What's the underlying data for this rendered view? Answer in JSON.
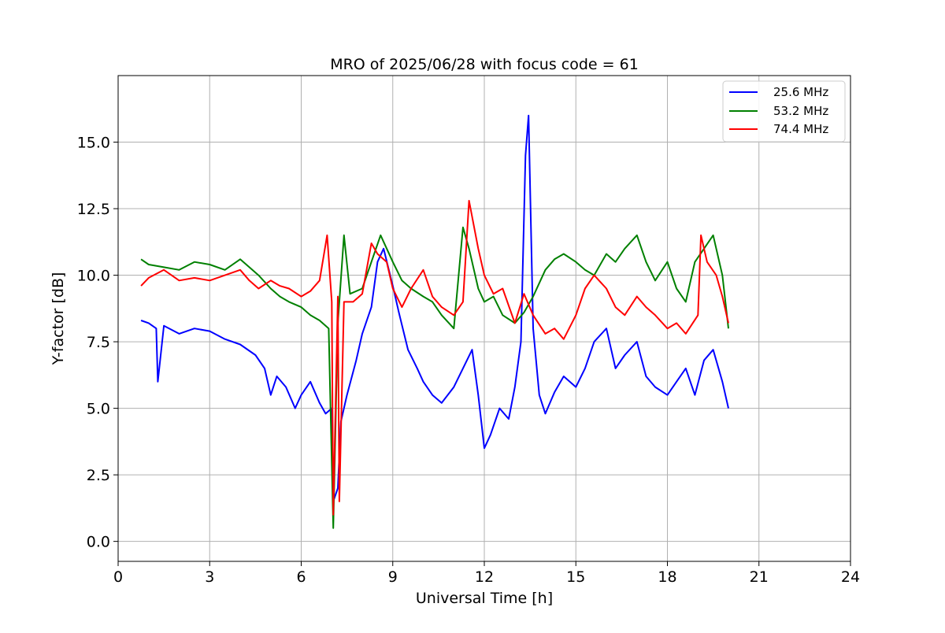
{
  "chart_data": {
    "type": "line",
    "title": "MRO of 2025/06/28 with focus code = 61",
    "xlabel": "Universal Time [h]",
    "ylabel": "Y-factor [dB]",
    "xlim": [
      0,
      24
    ],
    "ylim": [
      -0.75,
      17.5
    ],
    "xticks": [
      0,
      3,
      6,
      9,
      12,
      15,
      18,
      21,
      24
    ],
    "yticks": [
      0.0,
      2.5,
      5.0,
      7.5,
      10.0,
      12.5,
      15.0
    ],
    "ytick_labels": [
      "0.0",
      "2.5",
      "5.0",
      "7.5",
      "10.0",
      "12.5",
      "15.0"
    ],
    "grid": true,
    "legend_position": "top-right",
    "series": [
      {
        "name": "25.6 MHz",
        "color": "#0000ff",
        "x": [
          0.75,
          1.0,
          1.25,
          1.3,
          1.5,
          2.0,
          2.5,
          3.0,
          3.5,
          4.0,
          4.5,
          4.8,
          5.0,
          5.2,
          5.5,
          5.8,
          6.0,
          6.3,
          6.6,
          6.8,
          7.0,
          7.05,
          7.2,
          7.3,
          7.5,
          7.8,
          8.0,
          8.3,
          8.5,
          8.7,
          9.0,
          9.2,
          9.5,
          9.8,
          10.0,
          10.3,
          10.6,
          11.0,
          11.3,
          11.6,
          11.8,
          12.0,
          12.2,
          12.5,
          12.8,
          13.0,
          13.2,
          13.35,
          13.45,
          13.6,
          13.8,
          14.0,
          14.3,
          14.6,
          15.0,
          15.3,
          15.6,
          16.0,
          16.3,
          16.6,
          17.0,
          17.3,
          17.6,
          18.0,
          18.3,
          18.6,
          18.9,
          19.2,
          19.5,
          19.8,
          20.0
        ],
        "values": [
          8.3,
          8.2,
          8.0,
          6.0,
          8.1,
          7.8,
          8.0,
          7.9,
          7.6,
          7.4,
          7.0,
          6.5,
          5.5,
          6.2,
          5.8,
          5.0,
          5.5,
          6.0,
          5.2,
          4.8,
          5.0,
          1.5,
          2.0,
          4.5,
          5.5,
          6.8,
          7.8,
          8.8,
          10.5,
          11.0,
          9.6,
          8.6,
          7.2,
          6.5,
          6.0,
          5.5,
          5.2,
          5.8,
          6.5,
          7.2,
          5.5,
          3.5,
          4.0,
          5.0,
          4.6,
          5.8,
          7.5,
          14.5,
          16.0,
          8.0,
          5.5,
          4.8,
          5.6,
          6.2,
          5.8,
          6.5,
          7.5,
          8.0,
          6.5,
          7.0,
          7.5,
          6.2,
          5.8,
          5.5,
          6.0,
          6.5,
          5.5,
          6.8,
          7.2,
          6.0,
          5.0
        ]
      },
      {
        "name": "53.2 MHz",
        "color": "#008000",
        "x": [
          0.75,
          1.0,
          1.5,
          2.0,
          2.5,
          3.0,
          3.5,
          4.0,
          4.3,
          4.6,
          5.0,
          5.3,
          5.6,
          6.0,
          6.3,
          6.6,
          6.9,
          7.05,
          7.2,
          7.4,
          7.6,
          8.0,
          8.3,
          8.6,
          9.0,
          9.3,
          9.6,
          10.0,
          10.3,
          10.6,
          11.0,
          11.3,
          11.5,
          11.8,
          12.0,
          12.3,
          12.6,
          13.0,
          13.3,
          13.6,
          14.0,
          14.3,
          14.6,
          15.0,
          15.3,
          15.6,
          16.0,
          16.3,
          16.6,
          17.0,
          17.3,
          17.6,
          18.0,
          18.3,
          18.6,
          18.9,
          19.2,
          19.5,
          19.8,
          20.0
        ],
        "values": [
          10.6,
          10.4,
          10.3,
          10.2,
          10.5,
          10.4,
          10.2,
          10.6,
          10.3,
          10.0,
          9.5,
          9.2,
          9.0,
          8.8,
          8.5,
          8.3,
          8.0,
          0.5,
          8.2,
          11.5,
          9.3,
          9.5,
          10.5,
          11.5,
          10.5,
          9.8,
          9.5,
          9.2,
          9.0,
          8.5,
          8.0,
          11.8,
          11.0,
          9.5,
          9.0,
          9.2,
          8.5,
          8.2,
          8.6,
          9.2,
          10.2,
          10.6,
          10.8,
          10.5,
          10.2,
          10.0,
          10.8,
          10.5,
          11.0,
          11.5,
          10.5,
          9.8,
          10.5,
          9.5,
          9.0,
          10.5,
          11.0,
          11.5,
          10.0,
          8.0
        ]
      },
      {
        "name": "74.4 MHz",
        "color": "#ff0000",
        "x": [
          0.75,
          1.0,
          1.5,
          2.0,
          2.5,
          3.0,
          3.5,
          4.0,
          4.3,
          4.6,
          5.0,
          5.3,
          5.6,
          6.0,
          6.3,
          6.6,
          6.85,
          7.0,
          7.05,
          7.2,
          7.25,
          7.4,
          7.7,
          8.0,
          8.3,
          8.5,
          8.8,
          9.0,
          9.3,
          9.6,
          10.0,
          10.3,
          10.6,
          11.0,
          11.3,
          11.5,
          11.8,
          12.0,
          12.3,
          12.6,
          13.0,
          13.3,
          13.6,
          14.0,
          14.3,
          14.6,
          15.0,
          15.3,
          15.6,
          16.0,
          16.3,
          16.6,
          17.0,
          17.3,
          17.6,
          18.0,
          18.3,
          18.6,
          19.0,
          19.1,
          19.3,
          19.6,
          19.8,
          20.0
        ],
        "values": [
          9.6,
          9.9,
          10.2,
          9.8,
          9.9,
          9.8,
          10.0,
          10.2,
          9.8,
          9.5,
          9.8,
          9.6,
          9.5,
          9.2,
          9.4,
          9.8,
          11.5,
          9.0,
          1.0,
          9.2,
          1.5,
          9.0,
          9.0,
          9.3,
          11.2,
          10.8,
          10.5,
          9.5,
          8.8,
          9.5,
          10.2,
          9.2,
          8.8,
          8.5,
          9.0,
          12.8,
          11.0,
          10.0,
          9.3,
          9.5,
          8.2,
          9.3,
          8.5,
          7.8,
          8.0,
          7.6,
          8.5,
          9.5,
          10.0,
          9.5,
          8.8,
          8.5,
          9.2,
          8.8,
          8.5,
          8.0,
          8.2,
          7.8,
          8.5,
          11.5,
          10.5,
          10.0,
          9.2,
          8.2
        ]
      }
    ]
  }
}
